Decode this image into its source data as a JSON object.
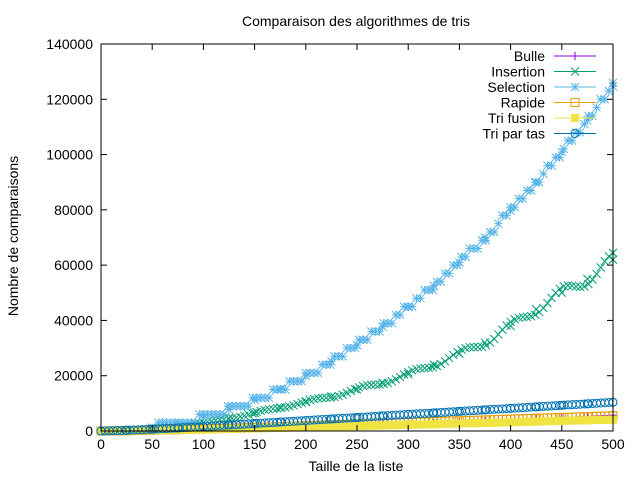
{
  "chart_data": {
    "type": "scatter",
    "title": "Comparaison des algorithmes de tris",
    "xlabel": "Taille de la liste",
    "ylabel": "Nombre de comparaisons",
    "xlim": [
      0,
      500
    ],
    "ylim": [
      0,
      140000
    ],
    "x_ticks": [
      0,
      50,
      100,
      150,
      200,
      250,
      300,
      350,
      400,
      450,
      500
    ],
    "y_ticks": [
      0,
      20000,
      40000,
      60000,
      80000,
      100000,
      120000,
      140000
    ],
    "grid": false,
    "legend_position": "top-right",
    "x_sample": [
      0,
      25,
      50,
      75,
      100,
      125,
      150,
      175,
      200,
      225,
      250,
      275,
      300,
      325,
      350,
      375,
      400,
      425,
      450,
      475,
      500
    ],
    "series": [
      {
        "name": "Bulle",
        "color": "#9400d3",
        "marker": "plus",
        "values": [
          0,
          50,
          150,
          300,
          500,
          700,
          900,
          1150,
          1400,
          1650,
          1950,
          2250,
          2550,
          2900,
          3250,
          3600,
          4000,
          4400,
          4800,
          5200,
          5700
        ]
      },
      {
        "name": "Insertion",
        "color": "#009e73",
        "marker": "x",
        "values": [
          0,
          300,
          800,
          1600,
          3000,
          4500,
          6500,
          8500,
          10500,
          12500,
          15000,
          17500,
          20500,
          24000,
          28000,
          32000,
          38000,
          44000,
          50000,
          55000,
          62000
        ]
      },
      {
        "name": "Selection",
        "color": "#56b4e9",
        "marker": "star",
        "values": [
          0,
          310,
          1250,
          2800,
          4950,
          7750,
          11200,
          15200,
          19900,
          25200,
          31100,
          37700,
          44800,
          52600,
          61000,
          70000,
          79700,
          90000,
          100900,
          112400,
          124700
        ]
      },
      {
        "name": "Rapide",
        "color": "#e69f00",
        "marker": "square-open",
        "values": [
          0,
          100,
          300,
          500,
          800,
          1000,
          1300,
          1600,
          1900,
          2200,
          2500,
          2800,
          3100,
          3400,
          3700,
          4000,
          4300,
          4600,
          4900,
          5200,
          5500
        ]
      },
      {
        "name": "Tri fusion",
        "color": "#f0e442",
        "marker": "square-filled",
        "values": [
          0,
          80,
          220,
          380,
          550,
          750,
          950,
          1150,
          1350,
          1550,
          1800,
          2000,
          2250,
          2450,
          2700,
          2900,
          3150,
          3400,
          3650,
          3900,
          4100
        ]
      },
      {
        "name": "Tri par tas",
        "color": "#0072b2",
        "marker": "circle-open",
        "values": [
          0,
          250,
          650,
          1100,
          1600,
          2150,
          2700,
          3250,
          3800,
          4350,
          4900,
          5450,
          6000,
          6550,
          7100,
          7650,
          8200,
          8750,
          9300,
          9850,
          10400
        ]
      }
    ]
  }
}
